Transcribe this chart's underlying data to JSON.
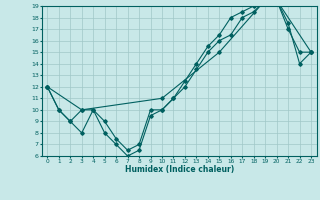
{
  "title": "",
  "xlabel": "Humidex (Indice chaleur)",
  "bg_color": "#c8e8e8",
  "grid_color": "#a0c8c8",
  "line_color": "#006060",
  "xlim": [
    -0.5,
    23.5
  ],
  "ylim": [
    6,
    19
  ],
  "xticks": [
    0,
    1,
    2,
    3,
    4,
    5,
    6,
    7,
    8,
    9,
    10,
    11,
    12,
    13,
    14,
    15,
    16,
    17,
    18,
    19,
    20,
    21,
    22,
    23
  ],
  "yticks": [
    6,
    7,
    8,
    9,
    10,
    11,
    12,
    13,
    14,
    15,
    16,
    17,
    18,
    19
  ],
  "line1_x": [
    0,
    1,
    2,
    3,
    4,
    5,
    6,
    7,
    8,
    9,
    10,
    11,
    12,
    13,
    14,
    15,
    16,
    17,
    18,
    19,
    20,
    21,
    22,
    23
  ],
  "line1_y": [
    12,
    10,
    9,
    8,
    10,
    8,
    7,
    6,
    6.5,
    9.5,
    10,
    11,
    12.5,
    14,
    15.5,
    16.5,
    18,
    18.5,
    19,
    19.5,
    19.5,
    17,
    15,
    15
  ],
  "line2_x": [
    0,
    1,
    2,
    3,
    4,
    5,
    6,
    7,
    8,
    9,
    10,
    11,
    12,
    13,
    14,
    15,
    16,
    17,
    18,
    19,
    20,
    21,
    22,
    23
  ],
  "line2_y": [
    12,
    10,
    9,
    10,
    10,
    9,
    7.5,
    6.5,
    7,
    10,
    10,
    11,
    12,
    13.5,
    15,
    16,
    16.5,
    18,
    18.5,
    19.5,
    19.5,
    17.5,
    14,
    15
  ],
  "line3_x": [
    0,
    3,
    10,
    15,
    19,
    20,
    23
  ],
  "line3_y": [
    12,
    10,
    11,
    15,
    19.5,
    19.5,
    15
  ]
}
